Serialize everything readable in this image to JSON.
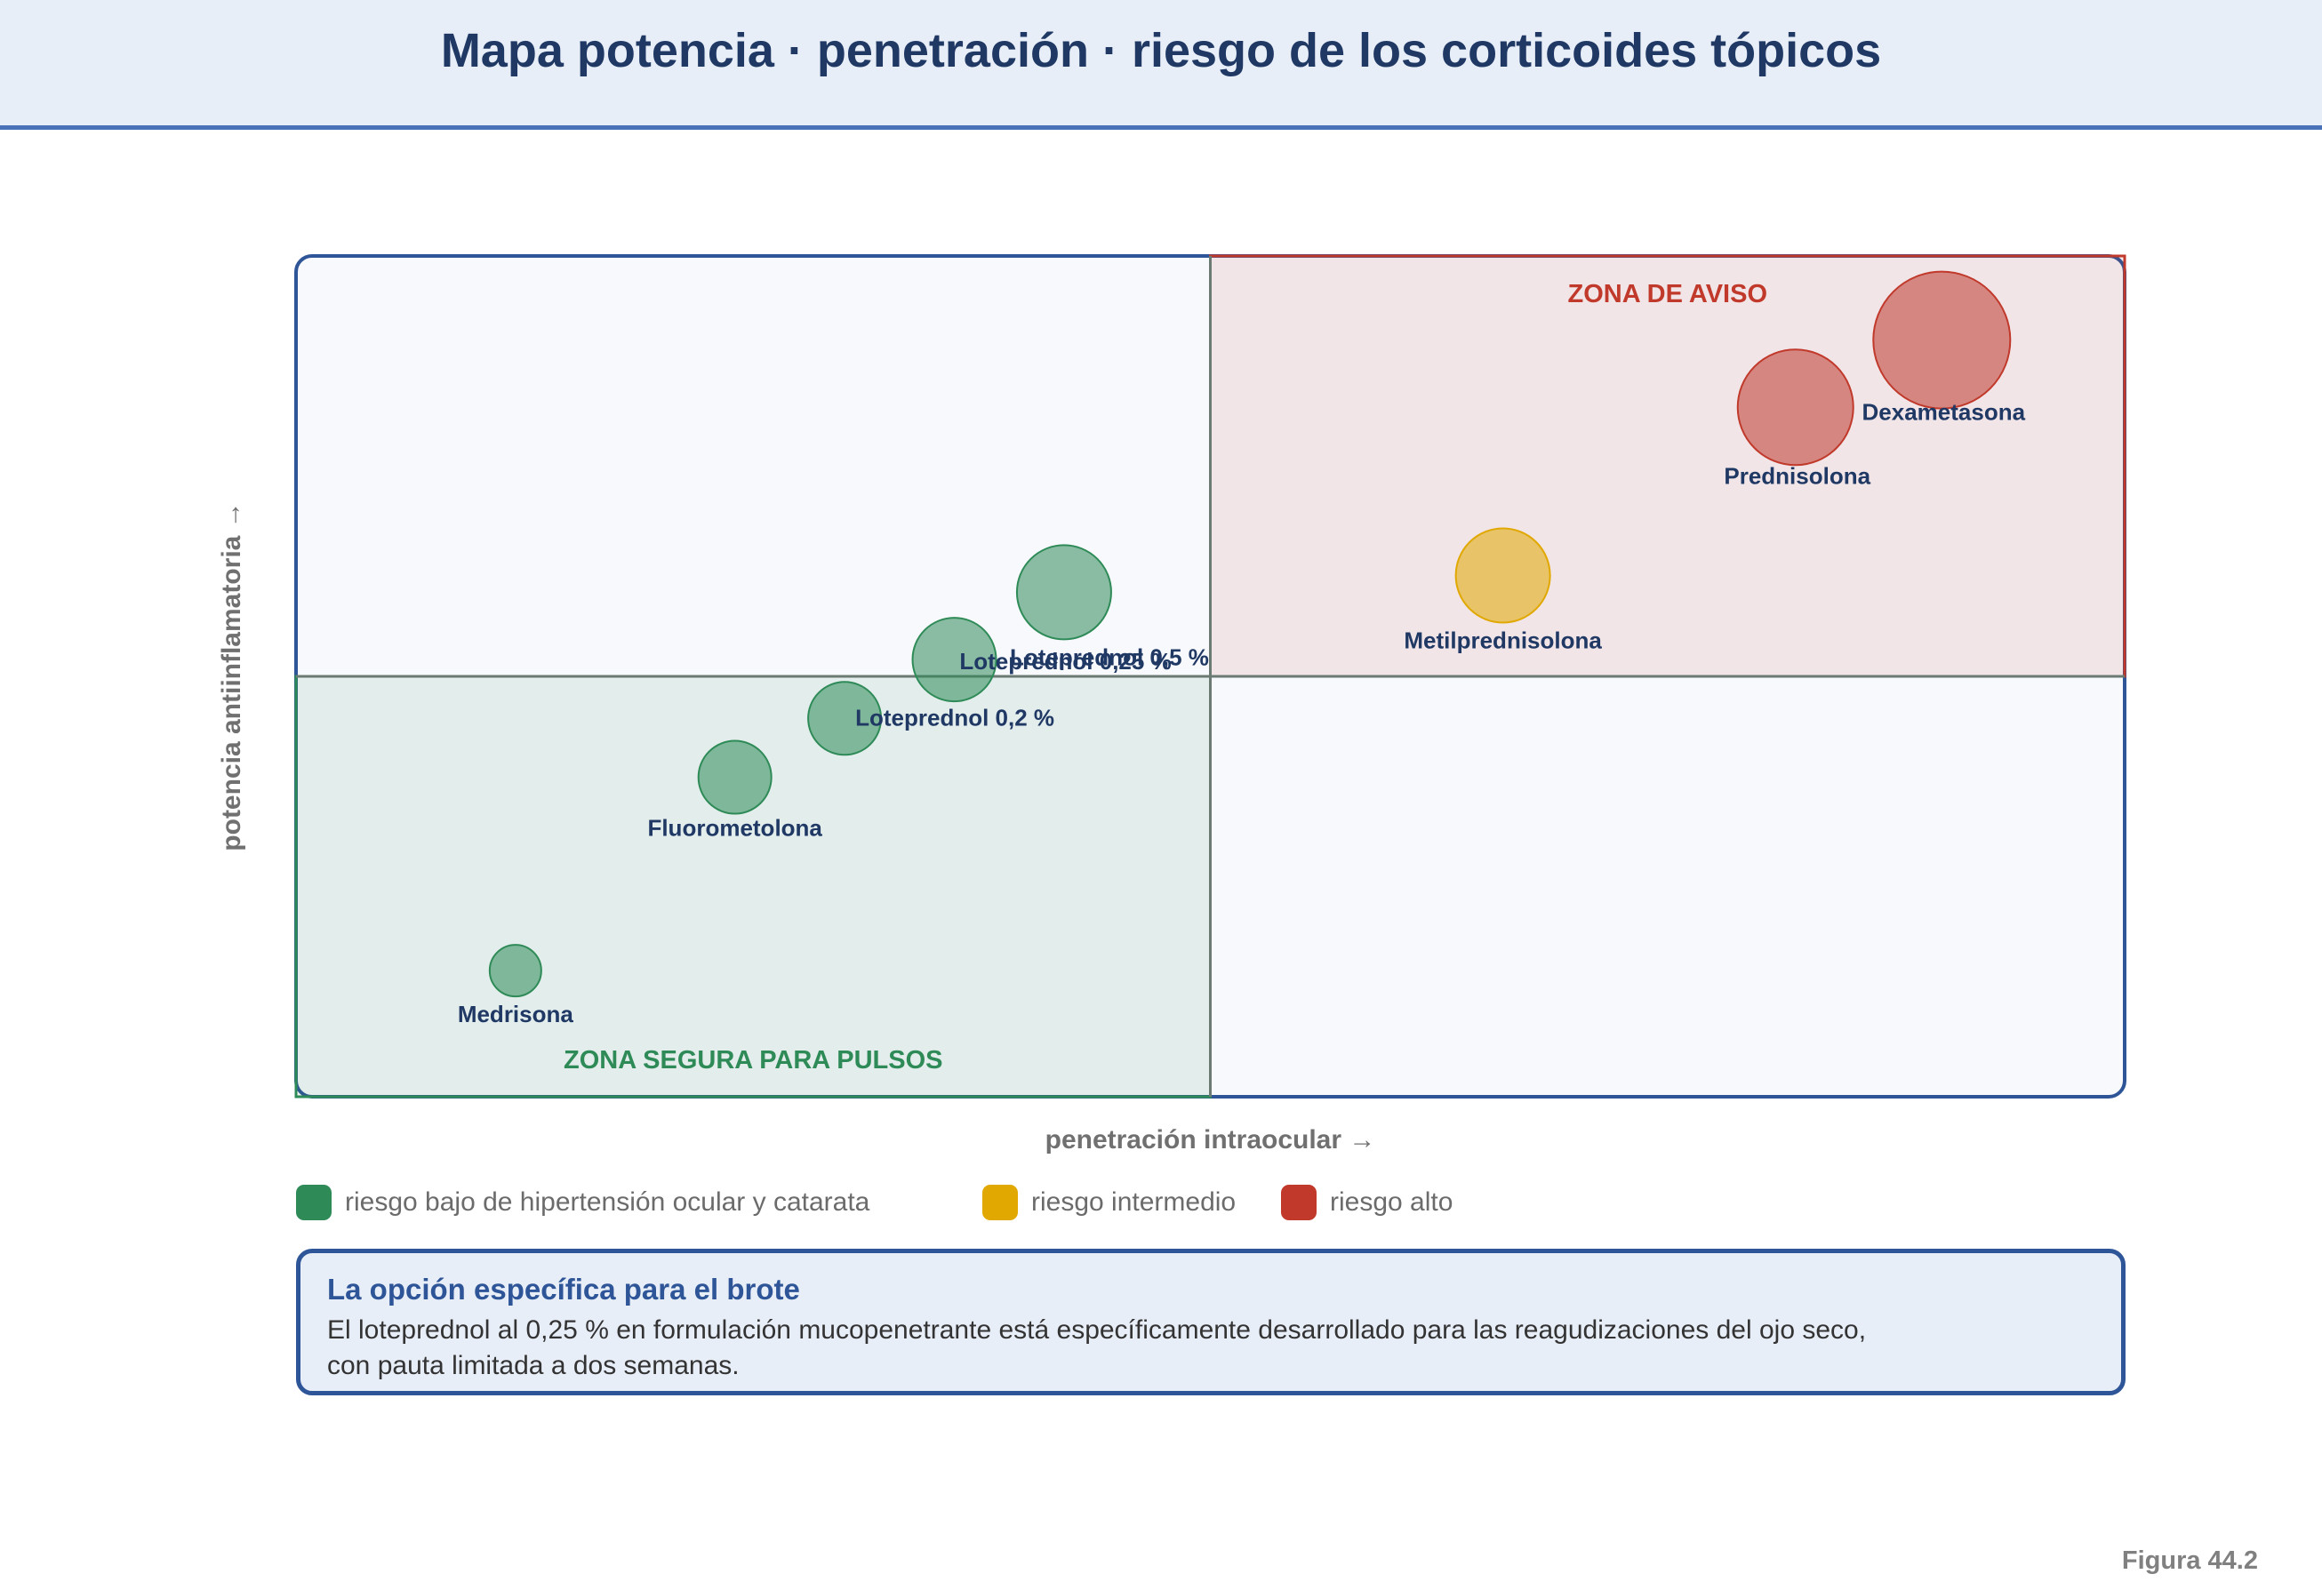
{
  "title": "Mapa potencia · penetración · riesgo de los corticoides tópicos",
  "colors": {
    "low": "#2e8b57",
    "mid": "#e0a800",
    "high": "#c0392b",
    "text_dark": "#1f3864",
    "frame": "#2e5597"
  },
  "chart_data": {
    "type": "scatter",
    "subtype": "bubble",
    "xlabel": "penetración intraocular →",
    "ylabel": "potencia antiinflamatoria →",
    "xlim": [
      0,
      100
    ],
    "ylim": [
      0,
      100
    ],
    "quadrant_split": {
      "x": 50,
      "y": 50
    },
    "grid": false,
    "zones": [
      {
        "label": "ZONA DE AVISO",
        "quadrant": "top-right",
        "color": "#c0392b"
      },
      {
        "label": "ZONA SEGURA PARA PULSOS",
        "quadrant": "bottom-left",
        "color": "#2e8b57"
      }
    ],
    "points": [
      {
        "label": "Medrisona",
        "x": 12,
        "y": 15,
        "size": 1,
        "risk": "low"
      },
      {
        "label": "Fluorometolona",
        "x": 24,
        "y": 38,
        "size": 2,
        "risk": "low"
      },
      {
        "label": "Loteprednol 0,2 %",
        "x": 30,
        "y": 45,
        "size": 2,
        "risk": "low"
      },
      {
        "label": "Loteprednol 0,25 %",
        "x": 36,
        "y": 52,
        "size": 2.5,
        "risk": "low"
      },
      {
        "label": "Loteprednol 0,5 %",
        "x": 42,
        "y": 60,
        "size": 3,
        "risk": "low"
      },
      {
        "label": "Metilprednisolona",
        "x": 66,
        "y": 62,
        "size": 3,
        "risk": "mid"
      },
      {
        "label": "Prednisolona",
        "x": 82,
        "y": 82,
        "size": 4,
        "risk": "high"
      },
      {
        "label": "Dexametasona",
        "x": 90,
        "y": 90,
        "size": 5,
        "risk": "high"
      }
    ],
    "legend": [
      {
        "label": "riesgo bajo de hipertensión ocular y catarata",
        "risk": "low"
      },
      {
        "label": "riesgo intermedio",
        "risk": "mid"
      },
      {
        "label": "riesgo alto",
        "risk": "high"
      }
    ]
  },
  "note": {
    "title": "La opción específica para el brote",
    "body_line1": "El loteprednol al 0,25 % en formulación mucopenetrante está específicamente desarrollado para las reagudizaciones del ojo seco,",
    "body_line2": "con pauta limitada a dos semanas."
  },
  "figure_label": "Figura 44.2"
}
